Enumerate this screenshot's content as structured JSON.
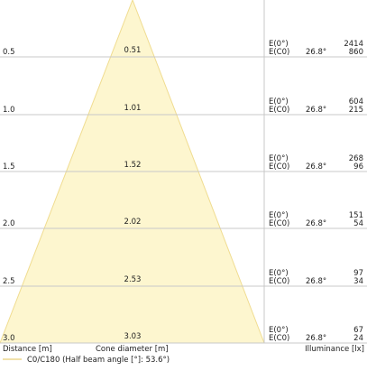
{
  "rows": [
    {
      "distance": "0.5",
      "diameter": "0.51",
      "e0_label": "E(0°)",
      "ec0_label": "E(C0)",
      "angle": "26.8°",
      "e0": "2414",
      "ec0": "860"
    },
    {
      "distance": "1.0",
      "diameter": "1.01",
      "e0_label": "E(0°)",
      "ec0_label": "E(C0)",
      "angle": "26.8°",
      "e0": "604",
      "ec0": "215"
    },
    {
      "distance": "1.5",
      "diameter": "1.52",
      "e0_label": "E(0°)",
      "ec0_label": "E(C0)",
      "angle": "26.8°",
      "e0": "268",
      "ec0": "96"
    },
    {
      "distance": "2.0",
      "diameter": "2.02",
      "e0_label": "E(0°)",
      "ec0_label": "E(C0)",
      "angle": "26.8°",
      "e0": "151",
      "ec0": "54"
    },
    {
      "distance": "2.5",
      "diameter": "2.53",
      "e0_label": "E(0°)",
      "ec0_label": "E(C0)",
      "angle": "26.8°",
      "e0": "97",
      "ec0": "34"
    },
    {
      "distance": "3.0",
      "diameter": "3.03",
      "e0_label": "E(0°)",
      "ec0_label": "E(C0)",
      "angle": "26.8°",
      "e0": "67",
      "ec0": "24"
    }
  ],
  "labels": {
    "distance_axis": "Distance [m]",
    "cone_axis": "Cone diameter [m]",
    "illuminance_axis": "Illuminance [lx]"
  },
  "legend": {
    "label": "C0/C180 (Half beam angle [°]: 53.6°)",
    "color": "#e8cf78"
  },
  "colors": {
    "cone_fill": "#fdf6cf",
    "cone_stroke": "#f0dc90",
    "grid": "#c8c8c8"
  }
}
